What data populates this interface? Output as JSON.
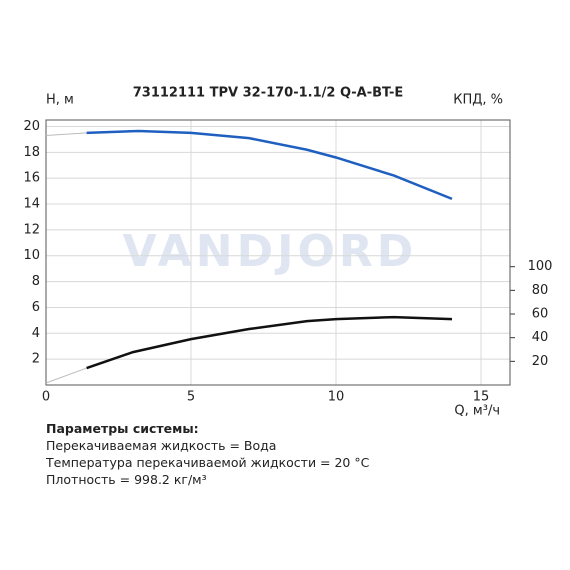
{
  "chart_data": {
    "type": "line",
    "title": "73112111 TPV 32-170-1.1/2 Q-A-BT-E",
    "ylabel": "H, м",
    "y2label": "КПД, %",
    "xlabel": "Q, м³/ч",
    "watermark": "VANDJORD",
    "xlim": [
      0,
      16
    ],
    "xticks": [
      0,
      5,
      10,
      15
    ],
    "ylim": [
      0,
      20.5
    ],
    "yticks": [
      2,
      4,
      6,
      8,
      10,
      12,
      14,
      16,
      18,
      20
    ],
    "y2lim": [
      0,
      224
    ],
    "y2ticks": [
      20,
      40,
      60,
      80,
      100
    ],
    "grid": true,
    "series": [
      {
        "color": "#bbbbbb",
        "x": [
          0,
          1.4
        ],
        "values": [
          19.3,
          19.5
        ]
      },
      {
        "color": "#1f5fbf",
        "x": [
          1.4,
          3.2,
          5,
          7,
          9,
          10,
          12,
          14
        ],
        "values": [
          19.5,
          19.65,
          19.5,
          19.1,
          18.2,
          17.6,
          16.2,
          14.4
        ]
      },
      {
        "color": "#bbbbbb",
        "axis": "y2",
        "x": [
          0,
          1.4
        ],
        "values": [
          1.7,
          14.3
        ]
      },
      {
        "color": "#111111",
        "axis": "y2",
        "x": [
          1.4,
          3,
          5,
          7,
          9,
          10,
          12,
          14
        ],
        "values": [
          14.3,
          27.8,
          38.8,
          47.3,
          54,
          55.7,
          57.4,
          55.7
        ]
      }
    ]
  },
  "notes": {
    "heading": "Параметры системы:",
    "lines": [
      "Перекачиваемая жидкость = Вода",
      "Температура перекачиваемой жидкости = 20 °C",
      "Плотность = 998.2 кг/м³"
    ]
  }
}
